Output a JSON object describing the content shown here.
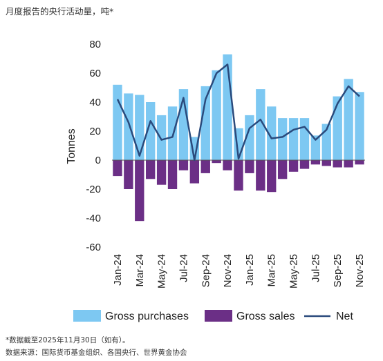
{
  "header": {
    "title": "月度报告的央行活动量，吨*"
  },
  "footnotes": {
    "note": "*数据截至2025年11月30日（如有）。",
    "source": "数据来源：国际货币基金组织、各国央行、世界黄金协会"
  },
  "colors": {
    "gross_purchases": "#7dc8f2",
    "gross_sales": "#6b2f86",
    "net": "#2a4a7c",
    "axis": "#555555"
  },
  "chart_data": {
    "type": "bar",
    "ylabel": "Tonnes",
    "ylim": [
      -60,
      80
    ],
    "yticks": [
      80,
      60,
      40,
      20,
      0,
      -20,
      -40,
      -60
    ],
    "ytick_labels": [
      "80",
      "60",
      "40",
      "20",
      "0",
      "-20",
      "-40",
      "-60"
    ],
    "categories": [
      "Jan-24",
      "Feb-24",
      "Mar-24",
      "Apr-24",
      "May-24",
      "Jun-24",
      "Jul-24",
      "Aug-24",
      "Sep-24",
      "Oct-24",
      "Nov-24",
      "Dec-24",
      "Jan-25",
      "Feb-25",
      "Mar-25",
      "Apr-25",
      "May-25",
      "Jun-25",
      "Jul-25",
      "Aug-25",
      "Sep-25",
      "Oct-25",
      "Nov-25"
    ],
    "xtick_labels": [
      "Jan-24",
      "Mar-24",
      "May-24",
      "Jul-24",
      "Sep-24",
      "Nov-24",
      "Jan-25",
      "Mar-25",
      "May-25",
      "Jul-25",
      "Sep-25",
      "Nov-25"
    ],
    "legend_position": "bottom",
    "series": [
      {
        "name": "Gross purchases",
        "type": "bar",
        "values": [
          52,
          46,
          45,
          40,
          31,
          37,
          49,
          16,
          51,
          62,
          73,
          22,
          31,
          49,
          37,
          29,
          29,
          29,
          17,
          25,
          44,
          56,
          47
        ]
      },
      {
        "name": "Gross sales",
        "type": "bar",
        "values": [
          -11,
          -20,
          -42,
          -13,
          -17,
          -20,
          -7,
          -16,
          -9,
          -2,
          -7,
          -21,
          -9,
          -21,
          -22,
          -13,
          -8,
          -6,
          -3,
          -4,
          -5,
          -5,
          -3
        ]
      },
      {
        "name": "Net",
        "type": "line",
        "values": [
          42,
          26,
          3,
          27,
          14,
          16,
          43,
          0,
          42,
          60,
          66,
          1,
          22,
          28,
          15,
          16,
          21,
          23,
          14,
          21,
          39,
          51,
          44
        ]
      }
    ]
  }
}
